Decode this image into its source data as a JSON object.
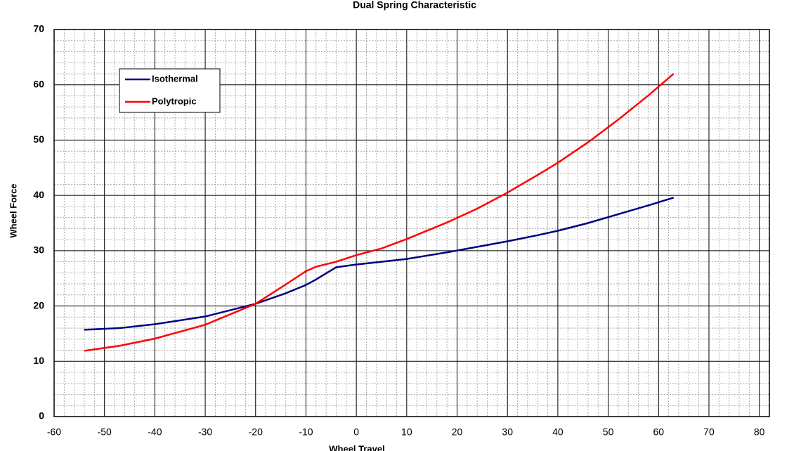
{
  "chart_data": {
    "type": "line",
    "title": "Dual Spring Characteristic",
    "x_label": "Wheel Travel",
    "y_label": "Wheel Force",
    "x": [
      -54,
      -47,
      -40,
      -30,
      -20,
      -14,
      -10,
      -8,
      -4,
      0,
      5,
      10,
      18,
      24,
      30,
      36,
      40,
      46,
      52,
      58,
      63
    ],
    "series": [
      {
        "name": "Isothermal",
        "color": "#000080",
        "values": [
          15.7,
          16.0,
          16.7,
          18.1,
          20.4,
          22.3,
          23.8,
          24.8,
          27.0,
          27.5,
          28.0,
          28.5,
          29.7,
          30.7,
          31.7,
          32.8,
          33.6,
          35.0,
          36.6,
          38.2,
          39.6
        ]
      },
      {
        "name": "Polytropic",
        "color": "#ff0000",
        "values": [
          11.9,
          12.8,
          14.1,
          16.6,
          20.4,
          23.9,
          26.3,
          27.1,
          28.0,
          29.2,
          30.4,
          32.1,
          35.1,
          37.6,
          40.5,
          43.7,
          45.9,
          49.6,
          53.7,
          58.1,
          62.0
        ]
      }
    ],
    "xlim": [
      -60,
      82
    ],
    "xticks": [
      -60,
      -50,
      -40,
      -30,
      -20,
      -10,
      0,
      10,
      20,
      30,
      40,
      50,
      60,
      70,
      80
    ],
    "ylim": [
      0,
      70
    ],
    "yticks": [
      0,
      10,
      20,
      30,
      40,
      50,
      60,
      70
    ],
    "grid": true,
    "minor_grid": true,
    "legend": "upper-left"
  }
}
